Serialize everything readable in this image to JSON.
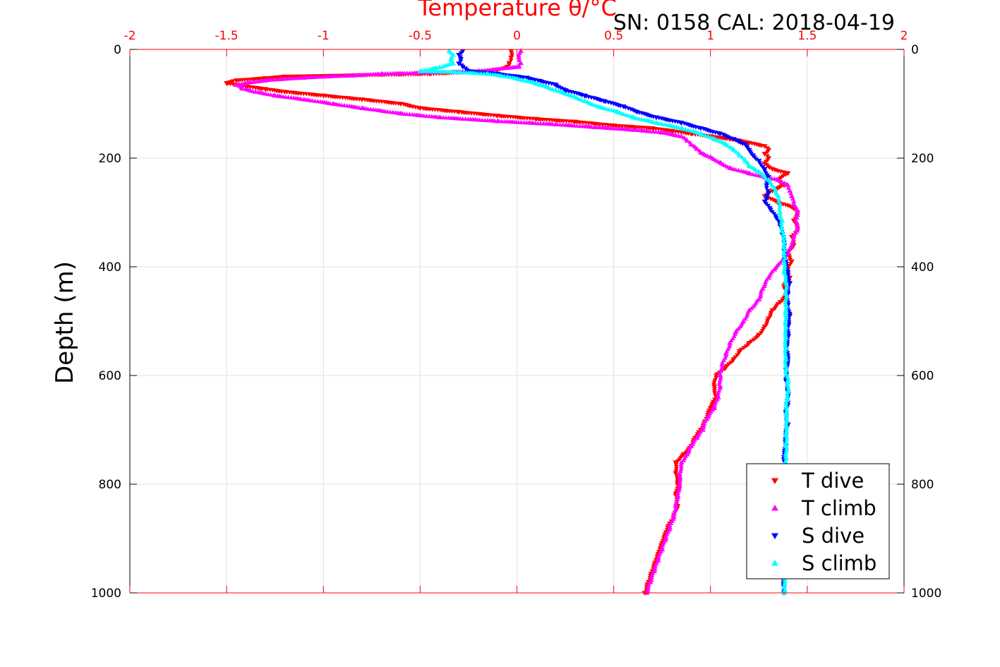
{
  "chart_data": {
    "type": "scatter",
    "title": "Temperature θ/°C",
    "subtitle": "SN: 0158  CAL: 2018-04-19",
    "xlabel": "Temperature θ/°C",
    "ylabel": "Depth (m)",
    "xlim": [
      -2,
      2
    ],
    "ylim": [
      0,
      1000
    ],
    "y_reversed": true,
    "x_ticks": [
      -2,
      -1.5,
      -1,
      -0.5,
      0,
      0.5,
      1,
      1.5,
      2
    ],
    "x_tick_labels": [
      "-2",
      "-1.5",
      "-1",
      "-0.5",
      "0",
      "0.5",
      "1",
      "1.5",
      "2"
    ],
    "y_ticks": [
      0,
      200,
      400,
      600,
      800,
      1000
    ],
    "y_tick_labels": [
      "0",
      "200",
      "400",
      "600",
      "800",
      "1000"
    ],
    "grid": true,
    "legend_position": "bottom-right",
    "colors": {
      "axis": "#ff0000",
      "grid": "#e0e0e0"
    },
    "series": [
      {
        "name": "T dive",
        "marker": "triangle-down",
        "color": "#ff0000",
        "points": [
          [
            -0.03,
            3
          ],
          [
            -0.03,
            15
          ],
          [
            -0.04,
            25
          ],
          [
            -0.05,
            32
          ],
          [
            -0.1,
            38
          ],
          [
            -0.2,
            41
          ],
          [
            -0.45,
            45
          ],
          [
            -1.2,
            50
          ],
          [
            -1.3,
            53
          ],
          [
            -1.45,
            57
          ],
          [
            -1.5,
            62
          ],
          [
            -1.4,
            68
          ],
          [
            -1.3,
            73
          ],
          [
            -1.2,
            78
          ],
          [
            -1.0,
            85
          ],
          [
            -0.8,
            92
          ],
          [
            -0.6,
            100
          ],
          [
            -0.5,
            108
          ],
          [
            -0.3,
            115
          ],
          [
            -0.1,
            122
          ],
          [
            0.1,
            128
          ],
          [
            0.3,
            133
          ],
          [
            0.5,
            140
          ],
          [
            0.7,
            145
          ],
          [
            0.8,
            150
          ],
          [
            0.9,
            155
          ],
          [
            1.0,
            160
          ],
          [
            1.1,
            165
          ],
          [
            1.15,
            168
          ],
          [
            1.2,
            172
          ],
          [
            1.28,
            178
          ],
          [
            1.3,
            185
          ],
          [
            1.28,
            192
          ],
          [
            1.3,
            200
          ],
          [
            1.28,
            210
          ],
          [
            1.32,
            220
          ],
          [
            1.4,
            228
          ],
          [
            1.35,
            240
          ],
          [
            1.38,
            250
          ],
          [
            1.32,
            260
          ],
          [
            1.28,
            270
          ],
          [
            1.35,
            282
          ],
          [
            1.42,
            290
          ],
          [
            1.45,
            300
          ],
          [
            1.43,
            315
          ],
          [
            1.45,
            330
          ],
          [
            1.42,
            345
          ],
          [
            1.43,
            360
          ],
          [
            1.4,
            375
          ],
          [
            1.42,
            390
          ],
          [
            1.4,
            405
          ],
          [
            1.41,
            420
          ],
          [
            1.38,
            435
          ],
          [
            1.4,
            450
          ],
          [
            1.36,
            465
          ],
          [
            1.32,
            480
          ],
          [
            1.3,
            495
          ],
          [
            1.28,
            510
          ],
          [
            1.25,
            525
          ],
          [
            1.2,
            540
          ],
          [
            1.15,
            555
          ],
          [
            1.12,
            570
          ],
          [
            1.08,
            585
          ],
          [
            1.03,
            600
          ],
          [
            1.02,
            620
          ],
          [
            1.03,
            640
          ],
          [
            1.0,
            660
          ],
          [
            0.98,
            680
          ],
          [
            0.95,
            700
          ],
          [
            0.92,
            715
          ],
          [
            0.9,
            730
          ],
          [
            0.86,
            745
          ],
          [
            0.82,
            760
          ],
          [
            0.82,
            780
          ],
          [
            0.83,
            800
          ],
          [
            0.82,
            820
          ],
          [
            0.83,
            840
          ],
          [
            0.81,
            860
          ],
          [
            0.78,
            880
          ],
          [
            0.76,
            900
          ],
          [
            0.74,
            920
          ],
          [
            0.72,
            940
          ],
          [
            0.7,
            960
          ],
          [
            0.68,
            980
          ],
          [
            0.66,
            1000
          ]
        ]
      },
      {
        "name": "T climb",
        "marker": "triangle-up",
        "color": "#ff00ff",
        "points": [
          [
            0.02,
            3
          ],
          [
            0.01,
            15
          ],
          [
            0.02,
            25
          ],
          [
            0.01,
            32
          ],
          [
            -0.2,
            40
          ],
          [
            -0.7,
            45
          ],
          [
            -0.85,
            48
          ],
          [
            -1.1,
            52
          ],
          [
            -1.3,
            57
          ],
          [
            -1.45,
            65
          ],
          [
            -1.42,
            72
          ],
          [
            -1.35,
            78
          ],
          [
            -1.25,
            85
          ],
          [
            -1.1,
            92
          ],
          [
            -0.95,
            100
          ],
          [
            -0.8,
            108
          ],
          [
            -0.6,
            118
          ],
          [
            -0.4,
            125
          ],
          [
            -0.1,
            132
          ],
          [
            0.2,
            138
          ],
          [
            0.4,
            143
          ],
          [
            0.6,
            148
          ],
          [
            0.75,
            153
          ],
          [
            0.85,
            160
          ],
          [
            0.88,
            168
          ],
          [
            0.9,
            175
          ],
          [
            0.93,
            183
          ],
          [
            0.95,
            190
          ],
          [
            1.0,
            198
          ],
          [
            1.05,
            208
          ],
          [
            1.1,
            218
          ],
          [
            1.2,
            228
          ],
          [
            1.28,
            235
          ],
          [
            1.35,
            240
          ],
          [
            1.4,
            250
          ],
          [
            1.41,
            260
          ],
          [
            1.42,
            270
          ],
          [
            1.43,
            285
          ],
          [
            1.45,
            300
          ],
          [
            1.44,
            315
          ],
          [
            1.45,
            330
          ],
          [
            1.43,
            345
          ],
          [
            1.42,
            360
          ],
          [
            1.4,
            375
          ],
          [
            1.37,
            390
          ],
          [
            1.33,
            405
          ],
          [
            1.3,
            420
          ],
          [
            1.27,
            440
          ],
          [
            1.25,
            460
          ],
          [
            1.2,
            480
          ],
          [
            1.17,
            500
          ],
          [
            1.13,
            520
          ],
          [
            1.1,
            540
          ],
          [
            1.08,
            560
          ],
          [
            1.06,
            580
          ],
          [
            1.05,
            600
          ],
          [
            1.05,
            620
          ],
          [
            1.04,
            640
          ],
          [
            1.02,
            660
          ],
          [
            0.98,
            680
          ],
          [
            0.96,
            700
          ],
          [
            0.93,
            715
          ],
          [
            0.9,
            730
          ],
          [
            0.88,
            745
          ],
          [
            0.85,
            760
          ],
          [
            0.84,
            780
          ],
          [
            0.84,
            800
          ],
          [
            0.83,
            820
          ],
          [
            0.82,
            840
          ],
          [
            0.81,
            860
          ],
          [
            0.79,
            880
          ],
          [
            0.77,
            900
          ],
          [
            0.75,
            920
          ],
          [
            0.73,
            940
          ],
          [
            0.71,
            960
          ],
          [
            0.69,
            980
          ],
          [
            0.67,
            1000
          ]
        ]
      },
      {
        "name": "S dive",
        "marker": "triangle-down",
        "color": "#0000ff",
        "points": [
          [
            -0.28,
            3
          ],
          [
            -0.3,
            10
          ],
          [
            -0.29,
            18
          ],
          [
            -0.3,
            26
          ],
          [
            -0.28,
            32
          ],
          [
            -0.25,
            40
          ],
          [
            -0.1,
            45
          ],
          [
            0.05,
            52
          ],
          [
            0.12,
            58
          ],
          [
            0.2,
            65
          ],
          [
            0.25,
            75
          ],
          [
            0.35,
            85
          ],
          [
            0.45,
            95
          ],
          [
            0.55,
            105
          ],
          [
            0.62,
            115
          ],
          [
            0.72,
            125
          ],
          [
            0.85,
            135
          ],
          [
            0.95,
            145
          ],
          [
            1.05,
            155
          ],
          [
            1.12,
            165
          ],
          [
            1.18,
            175
          ],
          [
            1.2,
            185
          ],
          [
            1.22,
            195
          ],
          [
            1.25,
            205
          ],
          [
            1.28,
            220
          ],
          [
            1.3,
            235
          ],
          [
            1.29,
            250
          ],
          [
            1.3,
            265
          ],
          [
            1.28,
            280
          ],
          [
            1.31,
            295
          ],
          [
            1.34,
            310
          ],
          [
            1.36,
            325
          ],
          [
            1.37,
            340
          ],
          [
            1.38,
            355
          ],
          [
            1.38,
            370
          ],
          [
            1.39,
            390
          ],
          [
            1.4,
            410
          ],
          [
            1.41,
            430
          ],
          [
            1.4,
            450
          ],
          [
            1.4,
            470
          ],
          [
            1.41,
            490
          ],
          [
            1.4,
            510
          ],
          [
            1.4,
            530
          ],
          [
            1.39,
            550
          ],
          [
            1.4,
            570
          ],
          [
            1.39,
            590
          ],
          [
            1.39,
            610
          ],
          [
            1.4,
            630
          ],
          [
            1.4,
            650
          ],
          [
            1.39,
            670
          ],
          [
            1.4,
            690
          ],
          [
            1.39,
            710
          ],
          [
            1.39,
            730
          ],
          [
            1.38,
            750
          ],
          [
            1.39,
            770
          ],
          [
            1.38,
            790
          ],
          [
            1.38,
            810
          ],
          [
            1.38,
            830
          ],
          [
            1.38,
            850
          ],
          [
            1.38,
            870
          ],
          [
            1.38,
            890
          ],
          [
            1.38,
            910
          ],
          [
            1.38,
            930
          ],
          [
            1.38,
            950
          ],
          [
            1.38,
            970
          ],
          [
            1.38,
            990
          ],
          [
            1.38,
            1000
          ]
        ]
      },
      {
        "name": "S climb",
        "marker": "triangle-up",
        "color": "#00ffff",
        "points": [
          [
            -0.35,
            3
          ],
          [
            -0.33,
            10
          ],
          [
            -0.34,
            18
          ],
          [
            -0.33,
            26
          ],
          [
            -0.4,
            33
          ],
          [
            -0.5,
            40
          ],
          [
            -0.3,
            42
          ],
          [
            -0.15,
            45
          ],
          [
            -0.05,
            50
          ],
          [
            0.05,
            58
          ],
          [
            0.12,
            65
          ],
          [
            0.2,
            75
          ],
          [
            0.28,
            85
          ],
          [
            0.35,
            95
          ],
          [
            0.42,
            105
          ],
          [
            0.52,
            115
          ],
          [
            0.6,
            125
          ],
          [
            0.72,
            135
          ],
          [
            0.85,
            145
          ],
          [
            0.95,
            155
          ],
          [
            1.02,
            165
          ],
          [
            1.08,
            175
          ],
          [
            1.12,
            185
          ],
          [
            1.15,
            195
          ],
          [
            1.18,
            205
          ],
          [
            1.2,
            215
          ],
          [
            1.25,
            225
          ],
          [
            1.3,
            240
          ],
          [
            1.33,
            255
          ],
          [
            1.35,
            270
          ],
          [
            1.36,
            285
          ],
          [
            1.36,
            300
          ],
          [
            1.37,
            315
          ],
          [
            1.37,
            330
          ],
          [
            1.38,
            345
          ],
          [
            1.38,
            360
          ],
          [
            1.38,
            375
          ],
          [
            1.38,
            390
          ],
          [
            1.38,
            410
          ],
          [
            1.39,
            430
          ],
          [
            1.39,
            450
          ],
          [
            1.39,
            470
          ],
          [
            1.39,
            490
          ],
          [
            1.39,
            510
          ],
          [
            1.39,
            530
          ],
          [
            1.39,
            550
          ],
          [
            1.39,
            570
          ],
          [
            1.39,
            590
          ],
          [
            1.4,
            610
          ],
          [
            1.4,
            630
          ],
          [
            1.39,
            650
          ],
          [
            1.39,
            670
          ],
          [
            1.39,
            690
          ],
          [
            1.39,
            710
          ],
          [
            1.39,
            730
          ],
          [
            1.39,
            750
          ],
          [
            1.38,
            770
          ],
          [
            1.38,
            790
          ],
          [
            1.38,
            810
          ],
          [
            1.38,
            830
          ],
          [
            1.38,
            850
          ],
          [
            1.38,
            870
          ],
          [
            1.38,
            890
          ],
          [
            1.38,
            910
          ],
          [
            1.38,
            930
          ],
          [
            1.38,
            950
          ],
          [
            1.38,
            970
          ],
          [
            1.38,
            990
          ],
          [
            1.38,
            1000
          ]
        ]
      }
    ]
  }
}
